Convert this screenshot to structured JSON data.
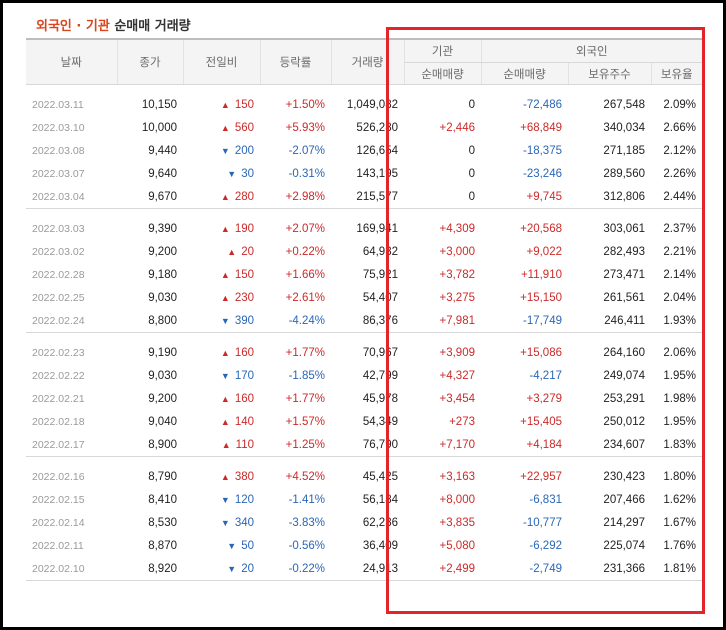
{
  "title": {
    "foreign": "외국인",
    "dot": " · ",
    "institution": "기관",
    "rest": " 순매매 거래량"
  },
  "headers": {
    "date": "날짜",
    "close": "종가",
    "change": "전일비",
    "rate": "등락률",
    "volume": "거래량",
    "institution_group": "기관",
    "foreign_group": "외국인",
    "inst_net": "순매매량",
    "foreign_net": "순매매량",
    "foreign_shares": "보유주수",
    "foreign_ratio": "보유율"
  },
  "colors": {
    "up": "#cc2a2a",
    "down": "#2a66b8",
    "highlight": "#e3242b",
    "title_accent": "#d9461e"
  },
  "groups": [
    [
      {
        "date": "2022.03.11",
        "close": "10,150",
        "dir": "up",
        "change": "150",
        "rate": "+1.50%",
        "volume": "1,049,082",
        "inst": "0",
        "foreign": "-72,486",
        "shares": "267,548",
        "ratio": "2.09%"
      },
      {
        "date": "2022.03.10",
        "close": "10,000",
        "dir": "up",
        "change": "560",
        "rate": "+5.93%",
        "volume": "526,280",
        "inst": "+2,446",
        "foreign": "+68,849",
        "shares": "340,034",
        "ratio": "2.66%"
      },
      {
        "date": "2022.03.08",
        "close": "9,440",
        "dir": "down",
        "change": "200",
        "rate": "-2.07%",
        "volume": "126,654",
        "inst": "0",
        "foreign": "-18,375",
        "shares": "271,185",
        "ratio": "2.12%"
      },
      {
        "date": "2022.03.07",
        "close": "9,640",
        "dir": "down",
        "change": "30",
        "rate": "-0.31%",
        "volume": "143,195",
        "inst": "0",
        "foreign": "-23,246",
        "shares": "289,560",
        "ratio": "2.26%"
      },
      {
        "date": "2022.03.04",
        "close": "9,670",
        "dir": "up",
        "change": "280",
        "rate": "+2.98%",
        "volume": "215,577",
        "inst": "0",
        "foreign": "+9,745",
        "shares": "312,806",
        "ratio": "2.44%"
      }
    ],
    [
      {
        "date": "2022.03.03",
        "close": "9,390",
        "dir": "up",
        "change": "190",
        "rate": "+2.07%",
        "volume": "169,941",
        "inst": "+4,309",
        "foreign": "+20,568",
        "shares": "303,061",
        "ratio": "2.37%"
      },
      {
        "date": "2022.03.02",
        "close": "9,200",
        "dir": "up",
        "change": "20",
        "rate": "+0.22%",
        "volume": "64,932",
        "inst": "+3,000",
        "foreign": "+9,022",
        "shares": "282,493",
        "ratio": "2.21%"
      },
      {
        "date": "2022.02.28",
        "close": "9,180",
        "dir": "up",
        "change": "150",
        "rate": "+1.66%",
        "volume": "75,921",
        "inst": "+3,782",
        "foreign": "+11,910",
        "shares": "273,471",
        "ratio": "2.14%"
      },
      {
        "date": "2022.02.25",
        "close": "9,030",
        "dir": "up",
        "change": "230",
        "rate": "+2.61%",
        "volume": "54,407",
        "inst": "+3,275",
        "foreign": "+15,150",
        "shares": "261,561",
        "ratio": "2.04%"
      },
      {
        "date": "2022.02.24",
        "close": "8,800",
        "dir": "down",
        "change": "390",
        "rate": "-4.24%",
        "volume": "86,376",
        "inst": "+7,981",
        "foreign": "-17,749",
        "shares": "246,411",
        "ratio": "1.93%"
      }
    ],
    [
      {
        "date": "2022.02.23",
        "close": "9,190",
        "dir": "up",
        "change": "160",
        "rate": "+1.77%",
        "volume": "70,967",
        "inst": "+3,909",
        "foreign": "+15,086",
        "shares": "264,160",
        "ratio": "2.06%"
      },
      {
        "date": "2022.02.22",
        "close": "9,030",
        "dir": "down",
        "change": "170",
        "rate": "-1.85%",
        "volume": "42,799",
        "inst": "+4,327",
        "foreign": "-4,217",
        "shares": "249,074",
        "ratio": "1.95%"
      },
      {
        "date": "2022.02.21",
        "close": "9,200",
        "dir": "up",
        "change": "160",
        "rate": "+1.77%",
        "volume": "45,978",
        "inst": "+3,454",
        "foreign": "+3,279",
        "shares": "253,291",
        "ratio": "1.98%"
      },
      {
        "date": "2022.02.18",
        "close": "9,040",
        "dir": "up",
        "change": "140",
        "rate": "+1.57%",
        "volume": "54,349",
        "inst": "+273",
        "foreign": "+15,405",
        "shares": "250,012",
        "ratio": "1.95%"
      },
      {
        "date": "2022.02.17",
        "close": "8,900",
        "dir": "up",
        "change": "110",
        "rate": "+1.25%",
        "volume": "76,790",
        "inst": "+7,170",
        "foreign": "+4,184",
        "shares": "234,607",
        "ratio": "1.83%"
      }
    ],
    [
      {
        "date": "2022.02.16",
        "close": "8,790",
        "dir": "up",
        "change": "380",
        "rate": "+4.52%",
        "volume": "45,425",
        "inst": "+3,163",
        "foreign": "+22,957",
        "shares": "230,423",
        "ratio": "1.80%"
      },
      {
        "date": "2022.02.15",
        "close": "8,410",
        "dir": "down",
        "change": "120",
        "rate": "-1.41%",
        "volume": "56,184",
        "inst": "+8,000",
        "foreign": "-6,831",
        "shares": "207,466",
        "ratio": "1.62%"
      },
      {
        "date": "2022.02.14",
        "close": "8,530",
        "dir": "down",
        "change": "340",
        "rate": "-3.83%",
        "volume": "62,236",
        "inst": "+3,835",
        "foreign": "-10,777",
        "shares": "214,297",
        "ratio": "1.67%"
      },
      {
        "date": "2022.02.11",
        "close": "8,870",
        "dir": "down",
        "change": "50",
        "rate": "-0.56%",
        "volume": "36,409",
        "inst": "+5,080",
        "foreign": "-6,292",
        "shares": "225,074",
        "ratio": "1.76%"
      },
      {
        "date": "2022.02.10",
        "close": "8,920",
        "dir": "down",
        "change": "20",
        "rate": "-0.22%",
        "volume": "24,913",
        "inst": "+2,499",
        "foreign": "-2,749",
        "shares": "231,366",
        "ratio": "1.81%"
      }
    ]
  ]
}
